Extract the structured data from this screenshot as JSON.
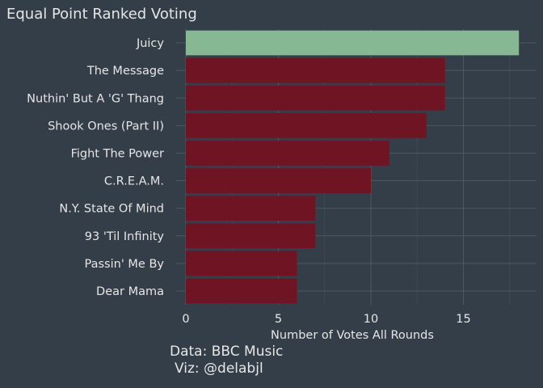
{
  "chart_data": {
    "type": "bar",
    "orientation": "horizontal",
    "title": "Equal Point Ranked Voting",
    "xlabel": "Number of Votes All Rounds",
    "ylabel": "",
    "categories": [
      "Juicy",
      "The Message",
      "Nuthin' But A 'G' Thang",
      "Shook Ones (Part II)",
      "Fight The Power",
      "C.R.E.A.M.",
      "N.Y. State Of Mind",
      "93 'Til Infinity",
      "Passin' Me By",
      "Dear Mama"
    ],
    "values": [
      18,
      14,
      14,
      13,
      11,
      10,
      7,
      7,
      6,
      6
    ],
    "highlight_index": 0,
    "xlim": [
      0,
      19
    ],
    "xticks": [
      0,
      5,
      10,
      15
    ],
    "grid": true,
    "colors": {
      "background": "#343e48",
      "highlight": "#86b894",
      "bar": "#6e1423",
      "text": "#e6e6e6",
      "grid": "#4d5862"
    }
  },
  "caption": {
    "line1": "Data: BBC Music",
    "line2": "Viz: @delabjl"
  }
}
